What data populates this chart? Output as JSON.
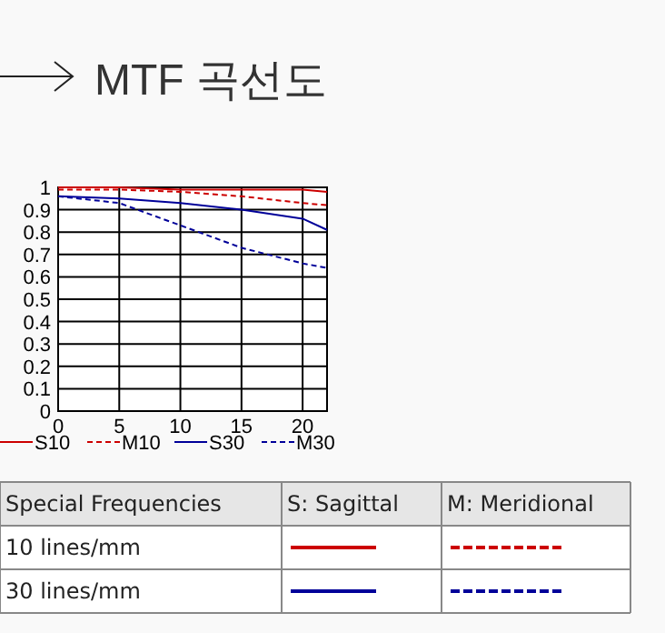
{
  "chart_data": {
    "type": "line",
    "title": "MTF 곡선도",
    "x": [
      0,
      5,
      10,
      15,
      20,
      22
    ],
    "series": [
      {
        "name": "S10",
        "color": "#cc0000",
        "line_style": "solid",
        "values": [
          1.0,
          1.0,
          0.99,
          0.99,
          0.99,
          0.98
        ]
      },
      {
        "name": "M10",
        "color": "#cc0000",
        "line_style": "dashed",
        "values": [
          0.99,
          0.99,
          0.98,
          0.96,
          0.93,
          0.92
        ]
      },
      {
        "name": "S30",
        "color": "#000099",
        "line_style": "solid",
        "values": [
          0.96,
          0.95,
          0.93,
          0.9,
          0.86,
          0.81
        ]
      },
      {
        "name": "M30",
        "color": "#000099",
        "line_style": "dashed",
        "values": [
          0.96,
          0.93,
          0.83,
          0.73,
          0.66,
          0.64
        ]
      }
    ],
    "xlim": [
      0,
      22
    ],
    "xticks": [
      0,
      5,
      10,
      15,
      20
    ],
    "ylim": [
      0,
      1
    ],
    "yticks": [
      0,
      0.1,
      0.2,
      0.3,
      0.4,
      0.5,
      0.6,
      0.7,
      0.8,
      0.9,
      1
    ],
    "grid": true,
    "legend": "bottom",
    "annotations": [
      "Special Frequencies",
      "S: Sagittal",
      "M: Meridional",
      "10 lines/mm",
      "30 lines/mm"
    ]
  }
}
